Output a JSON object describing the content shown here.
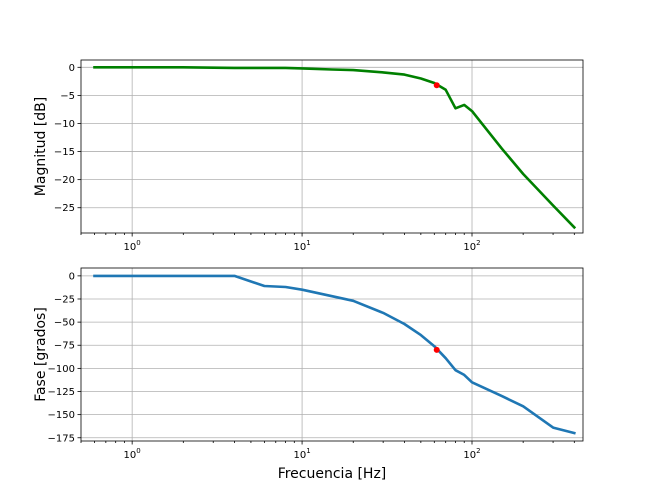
{
  "chart_data": [
    {
      "type": "line",
      "xscale": "log",
      "xlim": [
        0.5,
        450
      ],
      "ylim": [
        -29.5,
        1.3
      ],
      "xticks": [
        1,
        10,
        100
      ],
      "xtick_labels": [
        {
          "base": "10",
          "exp": "0"
        },
        {
          "base": "10",
          "exp": "1"
        },
        {
          "base": "10",
          "exp": "2"
        }
      ],
      "yticks": [
        0,
        -5,
        -10,
        -15,
        -20,
        -25
      ],
      "ytick_labels": [
        "0",
        "−5",
        "−10",
        "−15",
        "−20",
        "−25"
      ],
      "xlabel": "",
      "ylabel": "Magnitud [dB]",
      "grid": true,
      "series": [
        {
          "color": "#008000",
          "x": [
            0.6,
            1,
            2,
            4,
            8,
            10,
            15,
            20,
            30,
            40,
            50,
            60,
            70,
            80,
            90,
            100,
            150,
            200,
            300,
            400
          ],
          "y": [
            0.0,
            0.0,
            0.0,
            -0.1,
            -0.1,
            -0.2,
            -0.4,
            -0.5,
            -0.9,
            -1.3,
            -2.0,
            -2.8,
            -4.0,
            -7.3,
            -6.7,
            -7.8,
            -14.5,
            -19.0,
            -24.6,
            -28.5
          ]
        }
      ],
      "markers": [
        {
          "x": 62,
          "y": -3.2,
          "color": "#ff0000"
        }
      ]
    },
    {
      "type": "line",
      "xscale": "log",
      "xlim": [
        0.5,
        450
      ],
      "ylim": [
        -178.5,
        8.5
      ],
      "xticks": [
        1,
        10,
        100
      ],
      "xtick_labels": [
        {
          "base": "10",
          "exp": "0"
        },
        {
          "base": "10",
          "exp": "1"
        },
        {
          "base": "10",
          "exp": "2"
        }
      ],
      "yticks": [
        0,
        -25,
        -50,
        -75,
        -100,
        -125,
        -150,
        -175
      ],
      "ytick_labels": [
        "0",
        "−25",
        "−50",
        "−75",
        "−100",
        "−125",
        "−150",
        "−175"
      ],
      "xlabel": "Frecuencia [Hz]",
      "ylabel": "Fase [grados]",
      "grid": true,
      "series": [
        {
          "color": "#1f77b4",
          "x": [
            0.6,
            1,
            2,
            4,
            6,
            8,
            10,
            15,
            20,
            30,
            40,
            50,
            60,
            70,
            80,
            90,
            100,
            150,
            200,
            300,
            400
          ],
          "y": [
            0,
            0,
            0,
            0,
            -11,
            -12,
            -15,
            -22,
            -27,
            -40,
            -52,
            -64,
            -76,
            -89,
            -102,
            -107,
            -115,
            -130,
            -141,
            -164,
            -170
          ]
        }
      ],
      "markers": [
        {
          "x": 62,
          "y": -80,
          "color": "#ff0000"
        }
      ]
    }
  ]
}
